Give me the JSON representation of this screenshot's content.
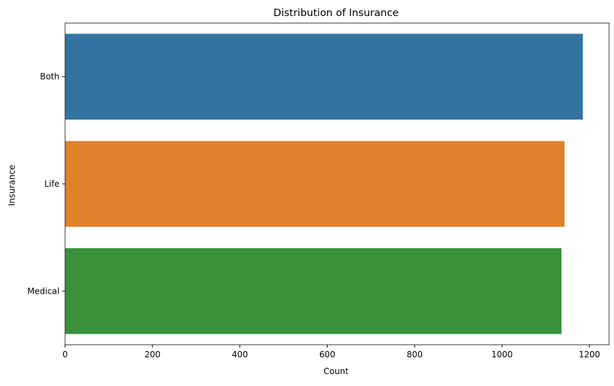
{
  "chart_data": {
    "type": "bar",
    "orientation": "horizontal",
    "title": "Distribution of Insurance",
    "xlabel": "Count",
    "ylabel": "Insurance",
    "categories": [
      "Both",
      "Life",
      "Medical"
    ],
    "values": [
      1185,
      1143,
      1136
    ],
    "colors": [
      "#3274a1",
      "#e1812c",
      "#3a923a"
    ],
    "xlim": [
      0,
      1245
    ],
    "xticks": [
      0,
      200,
      400,
      600,
      800,
      1000,
      1200
    ],
    "grid": false,
    "legend": "none"
  }
}
